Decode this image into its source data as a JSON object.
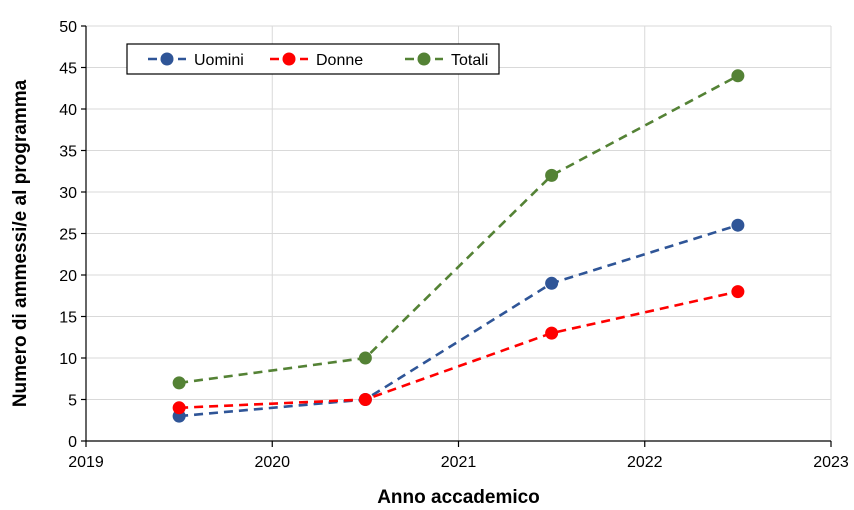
{
  "chart_data": {
    "type": "line",
    "title": "",
    "xlabel": "Anno accademico",
    "ylabel": "Numero di ammessi/e al programma",
    "xlim": [
      2019,
      2023
    ],
    "ylim": [
      0,
      50
    ],
    "x_ticks": [
      2019,
      2020,
      2021,
      2022,
      2023
    ],
    "y_ticks": [
      0,
      5,
      10,
      15,
      20,
      25,
      30,
      35,
      40,
      45,
      50
    ],
    "grid": true,
    "legend_position": "top-left",
    "line_style": "dashed",
    "x": [
      2019.5,
      2020.5,
      2021.5,
      2022.5
    ],
    "series": [
      {
        "name": "Uomini",
        "color": "#2F5597",
        "values": [
          3,
          5,
          19,
          26
        ]
      },
      {
        "name": "Donne",
        "color": "#FF0000",
        "values": [
          4,
          5,
          13,
          18
        ]
      },
      {
        "name": "Totali",
        "color": "#548235",
        "values": [
          7,
          10,
          32,
          44
        ]
      }
    ]
  }
}
